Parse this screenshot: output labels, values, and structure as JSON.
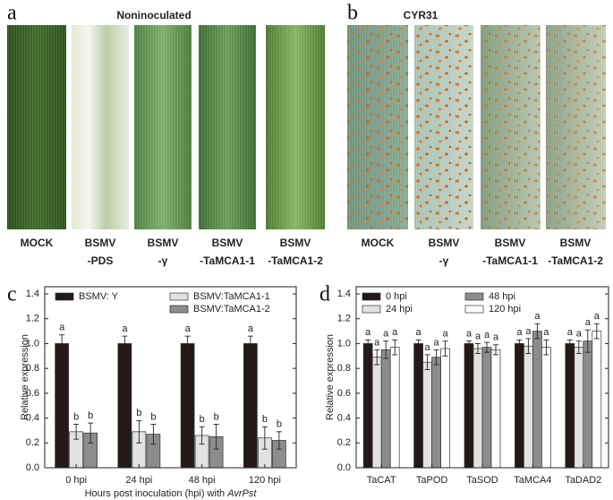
{
  "panels": [
    {
      "letter": "a",
      "title": "Noninoculated",
      "labels": [
        [
          "MOCK"
        ],
        [
          "BSMV",
          "-PDS"
        ],
        [
          "BSMV",
          "-γ"
        ],
        [
          "BSMV",
          "-TaMCA1-1"
        ],
        [
          "BSMV",
          "-TaMCA1-2"
        ]
      ]
    },
    {
      "letter": "b",
      "title": "CYR31",
      "labels": [
        [
          "MOCK"
        ],
        [
          "BSMV",
          "-γ"
        ],
        [
          "BSMV",
          "-TaMCA1-1"
        ],
        [
          "BSMV",
          "-TaMCA1-2"
        ]
      ]
    }
  ],
  "chart_data": [
    {
      "type": "bar",
      "panel_letter": "c",
      "ylabel": "Relative expression",
      "xlabel": "Hours post inoculation (hpi) with",
      "xlabel_italic": "AvrPst",
      "categories": [
        "0 hpi",
        "24 hpi",
        "48 hpi",
        "120 hpi"
      ],
      "series": [
        {
          "name": "BSMV: Y",
          "color": "#231a17",
          "values": [
            1.0,
            1.0,
            1.0,
            1.0
          ],
          "errors": [
            0.07,
            0.06,
            0.06,
            0.06
          ],
          "letters": [
            "a",
            "a",
            "a",
            "a"
          ]
        },
        {
          "name": "BSMV:TaMCA1-1",
          "color": "#e2e2e2",
          "values": [
            0.29,
            0.29,
            0.26,
            0.24
          ],
          "errors": [
            0.06,
            0.09,
            0.07,
            0.09
          ],
          "letters": [
            "b",
            "b",
            "b",
            "b"
          ]
        },
        {
          "name": "BSMV:TaMCA1-2",
          "color": "#8c8c8c",
          "values": [
            0.28,
            0.27,
            0.25,
            0.22
          ],
          "errors": [
            0.08,
            0.08,
            0.1,
            0.07
          ],
          "letters": [
            "b",
            "b",
            "b",
            "b"
          ]
        }
      ],
      "ylim": [
        0,
        1.4
      ],
      "yticks": [
        {
          "value": 0,
          "label": "0.0"
        },
        0.2,
        0.4,
        0.6,
        0.8,
        {
          "value": 1,
          "label": "1.0"
        },
        1.2,
        1.4
      ]
    },
    {
      "type": "bar",
      "panel_letter": "d",
      "ylabel": "Relative expression",
      "categories": [
        "TaCAT",
        "TaPOD",
        "TaSOD",
        "TaMCA4",
        "TaDAD2"
      ],
      "series": [
        {
          "name": "0 hpi",
          "color": "#231a17",
          "values": [
            1.0,
            1.0,
            1.0,
            1.0,
            1.0
          ],
          "errors": [
            0.03,
            0.03,
            0.02,
            0.03,
            0.03
          ],
          "letters": [
            "a",
            "a",
            "a",
            "a",
            "a"
          ]
        },
        {
          "name": "24 hpi",
          "color": "#e2e2e2",
          "values": [
            0.89,
            0.85,
            0.96,
            0.98,
            0.97
          ],
          "errors": [
            0.06,
            0.06,
            0.04,
            0.06,
            0.05
          ],
          "letters": [
            "a",
            "a",
            "a",
            "a",
            "a"
          ]
        },
        {
          "name": "48 hpi",
          "color": "#8c8c8c",
          "values": [
            0.95,
            0.89,
            0.97,
            1.1,
            1.02
          ],
          "errors": [
            0.07,
            0.06,
            0.04,
            0.06,
            0.09
          ],
          "letters": [
            "a",
            "a",
            "a",
            "a",
            "a"
          ]
        },
        {
          "name": "120 hpi",
          "color": "#ffffff",
          "values": [
            0.97,
            0.96,
            0.95,
            0.97,
            1.1
          ],
          "errors": [
            0.06,
            0.06,
            0.04,
            0.06,
            0.06
          ],
          "letters": [
            "a",
            "a",
            "a",
            "a",
            "a"
          ]
        }
      ],
      "ylim": [
        0,
        1.4
      ],
      "yticks": [
        {
          "value": 0,
          "label": "0.0"
        },
        0.2,
        0.4,
        0.6,
        0.8,
        {
          "value": 1,
          "label": "1.0"
        },
        1.2,
        1.4
      ]
    }
  ]
}
